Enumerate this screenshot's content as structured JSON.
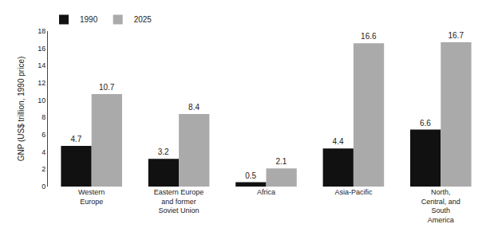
{
  "chart_data": {
    "type": "bar",
    "categories": [
      "Western\nEurope",
      "Eastern Europe\nand former\nSoviet Union",
      "Africa",
      "Asia-Pacific",
      "North,\nCentral, and\nSouth\nAmerica"
    ],
    "series": [
      {
        "name": "1990",
        "color": "#111111",
        "values": [
          4.7,
          3.2,
          0.5,
          4.4,
          6.6
        ]
      },
      {
        "name": "2025",
        "color": "#aaaaaa",
        "values": [
          10.7,
          8.4,
          2.1,
          16.6,
          16.7
        ]
      }
    ],
    "ylabel": "GNP (US$ trillion, 1990 price)",
    "ylim": [
      0,
      18
    ],
    "yticks": [
      0,
      2,
      4,
      6,
      8,
      10,
      12,
      14,
      16,
      18
    ],
    "data_labels": true,
    "legend": "upper left",
    "grid": false
  }
}
